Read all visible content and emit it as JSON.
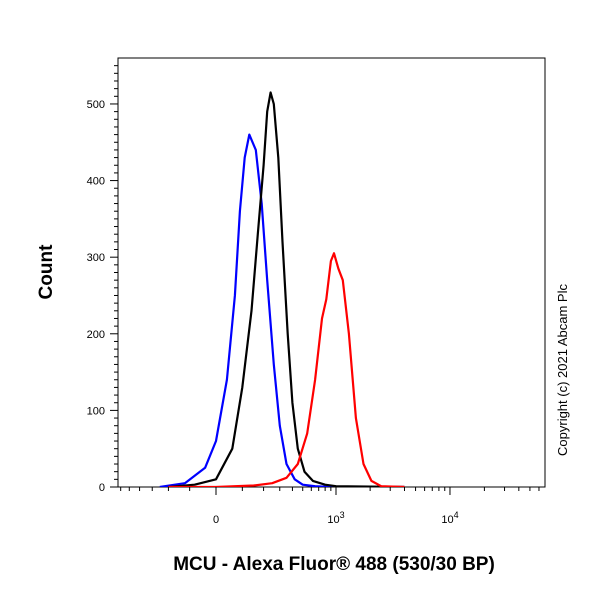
{
  "chart_data": {
    "type": "line",
    "xlabel": "MCU - Alexa Fluor® 488 (530/30 BP)",
    "ylabel": "Count",
    "x_scale": "biexponential",
    "ylim": [
      0,
      560
    ],
    "grid": false,
    "x_tick_labels": [
      {
        "value": 0,
        "base": "0",
        "exp": ""
      },
      {
        "value": 1000,
        "base": "10",
        "exp": "3"
      },
      {
        "value": 10000,
        "base": "10",
        "exp": "4"
      }
    ],
    "y_ticks": [
      0,
      100,
      200,
      300,
      400,
      500
    ],
    "series": [
      {
        "color": "#0000ff",
        "x": [
          -250,
          -120,
          -40,
          0,
          40,
          70,
          90,
          110,
          130,
          160,
          190,
          220,
          260,
          300,
          350,
          420,
          500,
          650,
          900,
          4000
        ],
        "y": [
          0,
          5,
          25,
          60,
          140,
          250,
          360,
          430,
          460,
          440,
          370,
          270,
          160,
          80,
          30,
          10,
          3,
          1,
          0,
          0
        ]
      },
      {
        "color": "#000000",
        "x": [
          -200,
          -80,
          0,
          60,
          100,
          140,
          170,
          200,
          220,
          240,
          260,
          290,
          320,
          360,
          400,
          450,
          520,
          620,
          800,
          1000,
          4000
        ],
        "y": [
          0,
          3,
          10,
          50,
          130,
          230,
          330,
          420,
          490,
          515,
          500,
          430,
          320,
          200,
          110,
          50,
          20,
          8,
          3,
          1,
          0
        ]
      },
      {
        "color": "#ff0000",
        "x": [
          -200,
          0,
          150,
          250,
          350,
          450,
          550,
          650,
          750,
          820,
          900,
          960,
          1050,
          1150,
          1300,
          1500,
          1750,
          2050,
          2500,
          4000
        ],
        "y": [
          0,
          0,
          2,
          5,
          12,
          30,
          70,
          140,
          220,
          245,
          295,
          305,
          285,
          270,
          200,
          90,
          30,
          8,
          1,
          0
        ]
      }
    ]
  },
  "copyright": "Copyright (c) 2021 Abcam Plc"
}
